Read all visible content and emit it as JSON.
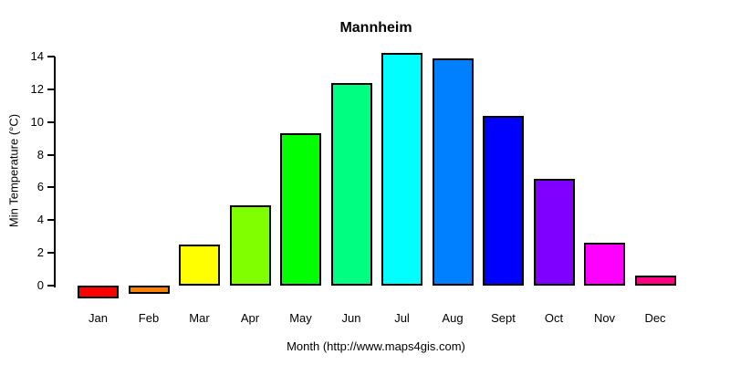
{
  "chart_data": {
    "type": "bar",
    "title": "Mannheim",
    "categories": [
      "Jan",
      "Feb",
      "Mar",
      "Apr",
      "May",
      "Jun",
      "Jul",
      "Aug",
      "Sept",
      "Oct",
      "Nov",
      "Dec"
    ],
    "values": [
      -0.8,
      -0.5,
      2.5,
      4.9,
      9.3,
      12.4,
      14.2,
      13.9,
      10.4,
      6.5,
      2.6,
      0.6
    ],
    "bar_colors": [
      "#FF0000",
      "#FF8000",
      "#FFFF00",
      "#80FF00",
      "#00FF00",
      "#00FF80",
      "#00FFFF",
      "#0080FF",
      "#0000FF",
      "#8000FF",
      "#FF00FF",
      "#FF0080"
    ],
    "bar_border_color": "#000000",
    "xlabel": "Month (http://www.maps4gis.com)",
    "ylabel": "Min Temperature (°C)",
    "yticks": [
      0,
      2,
      4,
      6,
      8,
      10,
      12,
      14
    ],
    "ylim": [
      -0.8,
      14.4
    ],
    "grid": false,
    "legend": false,
    "background": "#FFFFFF",
    "text_color": "#000000"
  }
}
